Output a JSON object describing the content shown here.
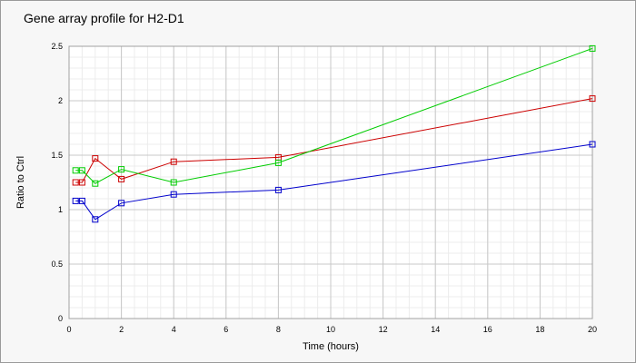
{
  "chart_data": {
    "type": "line",
    "title": "Gene array profile for H2-D1",
    "xlabel": "Time (hours)",
    "ylabel": "Ratio to Ctrl",
    "xlim": [
      0,
      20
    ],
    "ylim": [
      0,
      2.5
    ],
    "x_ticks": [
      "0",
      "2",
      "4",
      "6",
      "8",
      "10",
      "12",
      "14",
      "16",
      "18",
      "20"
    ],
    "y_ticks": [
      "0",
      "0.5",
      "1",
      "1.5",
      "2",
      "2.5"
    ],
    "grid": true,
    "minor_grid": true,
    "legend": "none",
    "marker": "square",
    "series": [
      {
        "color": "#0000cc",
        "x": [
          0.25,
          0.5,
          1,
          2,
          4,
          8,
          20
        ],
        "y": [
          1.08,
          1.08,
          0.91,
          1.06,
          1.14,
          1.18,
          1.6
        ]
      },
      {
        "color": "#cc0000",
        "x": [
          0.25,
          0.5,
          1,
          2,
          4,
          8,
          20
        ],
        "y": [
          1.25,
          1.25,
          1.47,
          1.28,
          1.44,
          1.48,
          2.02
        ]
      },
      {
        "color": "#00cc00",
        "x": [
          0.25,
          0.5,
          1,
          2,
          4,
          8,
          20
        ],
        "y": [
          1.36,
          1.36,
          1.24,
          1.37,
          1.25,
          1.43,
          2.48
        ]
      }
    ]
  }
}
